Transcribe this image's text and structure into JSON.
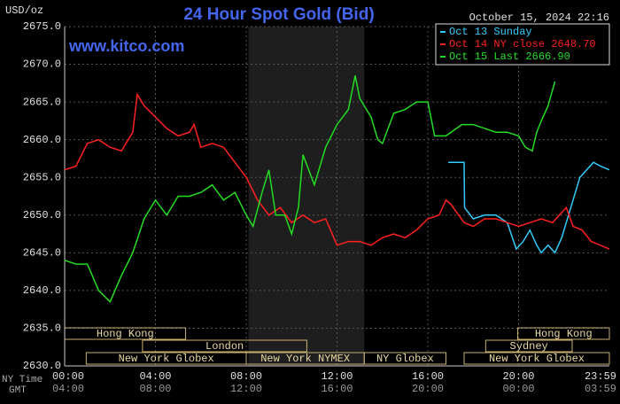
{
  "chart_data": {
    "type": "line",
    "title": "24 Hour Spot Gold (Bid)",
    "date_label": "October 15, 2024 22:16",
    "site": "www.kitco.com",
    "y_unit": "USD/oz",
    "x_row_labels": [
      "NY Time",
      "GMT"
    ],
    "xlim": [
      0,
      24
    ],
    "ylim": [
      2630,
      2675
    ],
    "xticks": [
      {
        "value": 0,
        "label": "00:00"
      },
      {
        "value": 4,
        "label": "04:00"
      },
      {
        "value": 8,
        "label": "08:00"
      },
      {
        "value": 12,
        "label": "12:00"
      },
      {
        "value": 16,
        "label": "16:00"
      },
      {
        "value": 20,
        "label": "20:00"
      },
      {
        "value": 23.983,
        "label": "23:59"
      }
    ],
    "xtick_labels_gmt": [
      "04:00",
      "08:00",
      "12:00",
      "16:00",
      "20:00",
      "00:00",
      "03:59"
    ],
    "yticks": [
      {
        "value": 2630,
        "label": "2630.0"
      },
      {
        "value": 2635,
        "label": "2635.0"
      },
      {
        "value": 2640,
        "label": "2640.0"
      },
      {
        "value": 2645,
        "label": "2645.0"
      },
      {
        "value": 2650,
        "label": "2650.0"
      },
      {
        "value": 2655,
        "label": "2655.0"
      },
      {
        "value": 2660,
        "label": "2660.0"
      },
      {
        "value": 2665,
        "label": "2665.0"
      },
      {
        "value": 2670,
        "label": "2670.0"
      },
      {
        "value": 2675,
        "label": "2675.0"
      }
    ],
    "grid": true,
    "shade": [
      8.1,
      13.2
    ],
    "sessions": [
      {
        "label": "Hong Kong",
        "start": 0,
        "end": 5.33
      },
      {
        "label": "London",
        "start": 3.43,
        "end": 10.67
      },
      {
        "label": "New York Globex",
        "start": 0.95,
        "end": 8.0
      },
      {
        "label": "New York NYMEX",
        "start": 8.0,
        "end": 13.2
      },
      {
        "label": "NY Globex",
        "start": 13.2,
        "end": 16.8
      },
      {
        "label": "Sydney",
        "start": 18.55,
        "end": 22.36
      },
      {
        "label": "Hong Kong",
        "start": 19.96,
        "end": 24
      },
      {
        "label": "New York Globex",
        "start": 17.6,
        "end": 24
      }
    ],
    "series": [
      {
        "name": "Oct 13 Sunday",
        "color": "#33ccff",
        "x": [
          16.9,
          17.6,
          17.62,
          18.0,
          18.5,
          19.0,
          19.5,
          19.9,
          20.2,
          20.5,
          20.8,
          21.0,
          21.3,
          21.6,
          21.9,
          22.2,
          22.5,
          22.7,
          23.0,
          23.3,
          23.6,
          24.0
        ],
        "values": [
          2657,
          2657,
          2651,
          2649.5,
          2650,
          2650,
          2649,
          2645.5,
          2646.5,
          2648,
          2646,
          2645,
          2646,
          2645,
          2647,
          2650,
          2653,
          2655,
          2656,
          2657,
          2656.5,
          2656
        ]
      },
      {
        "name": "Oct 14 NY close 2648.70",
        "color": "#ff2020",
        "x": [
          0,
          0.5,
          1,
          1.5,
          2,
          2.5,
          3,
          3.2,
          3.5,
          4,
          4.5,
          5,
          5.5,
          5.7,
          6,
          6.5,
          7,
          7.5,
          8,
          8.5,
          9,
          9.5,
          10,
          10.5,
          11,
          11.5,
          12,
          12.5,
          13,
          13.5,
          14,
          14.5,
          15,
          15.5,
          16,
          16.5,
          16.8,
          17.0,
          17.6,
          18,
          18.5,
          19,
          19.5,
          20,
          20.5,
          21,
          21.5,
          21.8,
          22.1,
          22.4,
          22.8,
          23.2,
          23.6,
          24
        ],
        "values": [
          2656,
          2656.5,
          2659.5,
          2660,
          2659,
          2658.5,
          2661,
          2666,
          2664.5,
          2663,
          2661.5,
          2660.5,
          2661,
          2662,
          2659,
          2659.5,
          2659,
          2657,
          2655,
          2652,
          2650,
          2651,
          2649,
          2650,
          2649,
          2649.5,
          2646,
          2646.5,
          2646.5,
          2646,
          2647,
          2647.5,
          2647,
          2648,
          2649.5,
          2650,
          2652,
          2651.5,
          2649,
          2648.5,
          2649.5,
          2649.5,
          2649,
          2648.5,
          2649,
          2649.5,
          2649,
          2650,
          2651,
          2648.5,
          2648,
          2646.5,
          2646,
          2645.5
        ]
      },
      {
        "name": "Oct 15 Last 2666.90",
        "color": "#22dd22",
        "x": [
          0,
          0.5,
          1,
          1.5,
          2,
          2.5,
          3,
          3.5,
          4,
          4.5,
          5,
          5.5,
          6,
          6.5,
          7,
          7.5,
          8,
          8.3,
          8.7,
          9,
          9.3,
          9.7,
          10,
          10.3,
          10.5,
          11,
          11.5,
          12,
          12.5,
          12.8,
          13,
          13.5,
          13.8,
          14,
          14.5,
          15,
          15.5,
          16,
          16.3,
          16.8,
          17.5,
          18,
          18.5,
          19,
          19.5,
          20,
          20.3,
          20.6,
          20.8,
          21,
          21.3,
          21.6
        ],
        "values": [
          2644,
          2643.5,
          2643.5,
          2640,
          2638.5,
          2642,
          2645,
          2649.5,
          2652,
          2650,
          2652.5,
          2652.5,
          2653,
          2654,
          2652,
          2653,
          2650,
          2648.5,
          2653,
          2656,
          2650,
          2650,
          2647.5,
          2651,
          2658,
          2654,
          2659,
          2662,
          2664,
          2668.5,
          2665.5,
          2663,
          2660,
          2659.5,
          2663.5,
          2664,
          2665,
          2665,
          2660.5,
          2660.5,
          2662,
          2662,
          2661.5,
          2661,
          2661,
          2660.5,
          2659,
          2658.5,
          2661,
          2662.5,
          2664.5,
          2667.7
        ]
      }
    ]
  }
}
